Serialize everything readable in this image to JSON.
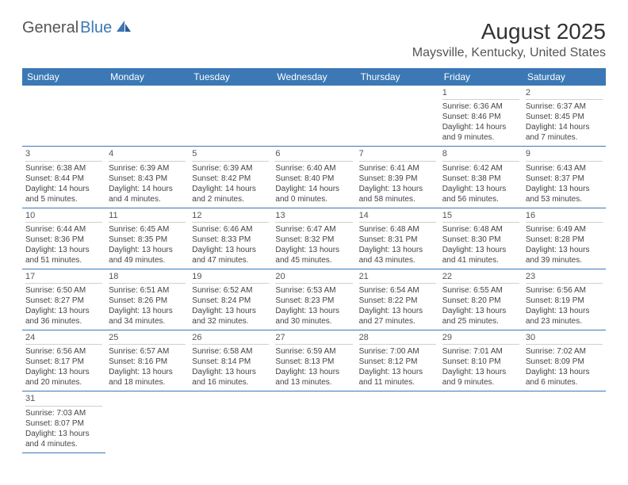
{
  "logo": {
    "text1": "General",
    "text2": "Blue"
  },
  "title": "August 2025",
  "location": "Maysville, Kentucky, United States",
  "colors": {
    "header_bg": "#3b78b5",
    "header_fg": "#ffffff",
    "row_border": "#3b78b5",
    "day_divider": "#d0d0d0",
    "text": "#444444",
    "logo_accent": "#3b78b5"
  },
  "typography": {
    "title_fontsize_pt": 21,
    "location_fontsize_pt": 12,
    "dayheader_fontsize_pt": 9,
    "cell_fontsize_pt": 7.5
  },
  "day_headers": [
    "Sunday",
    "Monday",
    "Tuesday",
    "Wednesday",
    "Thursday",
    "Friday",
    "Saturday"
  ],
  "weeks": [
    [
      null,
      null,
      null,
      null,
      null,
      {
        "n": "1",
        "sr": "Sunrise: 6:36 AM",
        "ss": "Sunset: 8:46 PM",
        "dl": "Daylight: 14 hours and 9 minutes."
      },
      {
        "n": "2",
        "sr": "Sunrise: 6:37 AM",
        "ss": "Sunset: 8:45 PM",
        "dl": "Daylight: 14 hours and 7 minutes."
      }
    ],
    [
      {
        "n": "3",
        "sr": "Sunrise: 6:38 AM",
        "ss": "Sunset: 8:44 PM",
        "dl": "Daylight: 14 hours and 5 minutes."
      },
      {
        "n": "4",
        "sr": "Sunrise: 6:39 AM",
        "ss": "Sunset: 8:43 PM",
        "dl": "Daylight: 14 hours and 4 minutes."
      },
      {
        "n": "5",
        "sr": "Sunrise: 6:39 AM",
        "ss": "Sunset: 8:42 PM",
        "dl": "Daylight: 14 hours and 2 minutes."
      },
      {
        "n": "6",
        "sr": "Sunrise: 6:40 AM",
        "ss": "Sunset: 8:40 PM",
        "dl": "Daylight: 14 hours and 0 minutes."
      },
      {
        "n": "7",
        "sr": "Sunrise: 6:41 AM",
        "ss": "Sunset: 8:39 PM",
        "dl": "Daylight: 13 hours and 58 minutes."
      },
      {
        "n": "8",
        "sr": "Sunrise: 6:42 AM",
        "ss": "Sunset: 8:38 PM",
        "dl": "Daylight: 13 hours and 56 minutes."
      },
      {
        "n": "9",
        "sr": "Sunrise: 6:43 AM",
        "ss": "Sunset: 8:37 PM",
        "dl": "Daylight: 13 hours and 53 minutes."
      }
    ],
    [
      {
        "n": "10",
        "sr": "Sunrise: 6:44 AM",
        "ss": "Sunset: 8:36 PM",
        "dl": "Daylight: 13 hours and 51 minutes."
      },
      {
        "n": "11",
        "sr": "Sunrise: 6:45 AM",
        "ss": "Sunset: 8:35 PM",
        "dl": "Daylight: 13 hours and 49 minutes."
      },
      {
        "n": "12",
        "sr": "Sunrise: 6:46 AM",
        "ss": "Sunset: 8:33 PM",
        "dl": "Daylight: 13 hours and 47 minutes."
      },
      {
        "n": "13",
        "sr": "Sunrise: 6:47 AM",
        "ss": "Sunset: 8:32 PM",
        "dl": "Daylight: 13 hours and 45 minutes."
      },
      {
        "n": "14",
        "sr": "Sunrise: 6:48 AM",
        "ss": "Sunset: 8:31 PM",
        "dl": "Daylight: 13 hours and 43 minutes."
      },
      {
        "n": "15",
        "sr": "Sunrise: 6:48 AM",
        "ss": "Sunset: 8:30 PM",
        "dl": "Daylight: 13 hours and 41 minutes."
      },
      {
        "n": "16",
        "sr": "Sunrise: 6:49 AM",
        "ss": "Sunset: 8:28 PM",
        "dl": "Daylight: 13 hours and 39 minutes."
      }
    ],
    [
      {
        "n": "17",
        "sr": "Sunrise: 6:50 AM",
        "ss": "Sunset: 8:27 PM",
        "dl": "Daylight: 13 hours and 36 minutes."
      },
      {
        "n": "18",
        "sr": "Sunrise: 6:51 AM",
        "ss": "Sunset: 8:26 PM",
        "dl": "Daylight: 13 hours and 34 minutes."
      },
      {
        "n": "19",
        "sr": "Sunrise: 6:52 AM",
        "ss": "Sunset: 8:24 PM",
        "dl": "Daylight: 13 hours and 32 minutes."
      },
      {
        "n": "20",
        "sr": "Sunrise: 6:53 AM",
        "ss": "Sunset: 8:23 PM",
        "dl": "Daylight: 13 hours and 30 minutes."
      },
      {
        "n": "21",
        "sr": "Sunrise: 6:54 AM",
        "ss": "Sunset: 8:22 PM",
        "dl": "Daylight: 13 hours and 27 minutes."
      },
      {
        "n": "22",
        "sr": "Sunrise: 6:55 AM",
        "ss": "Sunset: 8:20 PM",
        "dl": "Daylight: 13 hours and 25 minutes."
      },
      {
        "n": "23",
        "sr": "Sunrise: 6:56 AM",
        "ss": "Sunset: 8:19 PM",
        "dl": "Daylight: 13 hours and 23 minutes."
      }
    ],
    [
      {
        "n": "24",
        "sr": "Sunrise: 6:56 AM",
        "ss": "Sunset: 8:17 PM",
        "dl": "Daylight: 13 hours and 20 minutes."
      },
      {
        "n": "25",
        "sr": "Sunrise: 6:57 AM",
        "ss": "Sunset: 8:16 PM",
        "dl": "Daylight: 13 hours and 18 minutes."
      },
      {
        "n": "26",
        "sr": "Sunrise: 6:58 AM",
        "ss": "Sunset: 8:14 PM",
        "dl": "Daylight: 13 hours and 16 minutes."
      },
      {
        "n": "27",
        "sr": "Sunrise: 6:59 AM",
        "ss": "Sunset: 8:13 PM",
        "dl": "Daylight: 13 hours and 13 minutes."
      },
      {
        "n": "28",
        "sr": "Sunrise: 7:00 AM",
        "ss": "Sunset: 8:12 PM",
        "dl": "Daylight: 13 hours and 11 minutes."
      },
      {
        "n": "29",
        "sr": "Sunrise: 7:01 AM",
        "ss": "Sunset: 8:10 PM",
        "dl": "Daylight: 13 hours and 9 minutes."
      },
      {
        "n": "30",
        "sr": "Sunrise: 7:02 AM",
        "ss": "Sunset: 8:09 PM",
        "dl": "Daylight: 13 hours and 6 minutes."
      }
    ],
    [
      {
        "n": "31",
        "sr": "Sunrise: 7:03 AM",
        "ss": "Sunset: 8:07 PM",
        "dl": "Daylight: 13 hours and 4 minutes."
      },
      null,
      null,
      null,
      null,
      null,
      null
    ]
  ]
}
